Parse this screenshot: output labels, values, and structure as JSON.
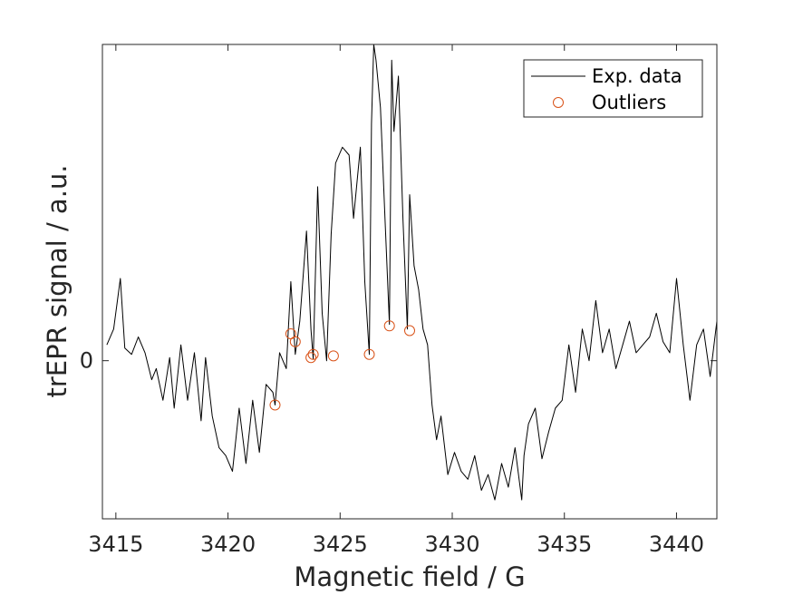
{
  "chart_data": {
    "type": "line",
    "xlabel": "Magnetic field / G",
    "ylabel": "trEPR signal / a.u.",
    "xlim": [
      3414.4,
      3441.8
    ],
    "ylim": [
      -1.0,
      2.0
    ],
    "xticks": [
      3415,
      3420,
      3425,
      3430,
      3435,
      3440
    ],
    "yticks": [
      {
        "value": 0,
        "label": "0"
      }
    ],
    "grid": false,
    "box": true,
    "legend": {
      "position": "top-right",
      "entries": [
        {
          "label": "Exp. data",
          "marker": "line"
        },
        {
          "label": "Outliers",
          "marker": "circle"
        }
      ]
    },
    "colors": {
      "data_line": "#000000",
      "outliers": "#D95319",
      "axes": "#262626"
    },
    "series": [
      {
        "name": "Exp. data",
        "style": "line",
        "x": [
          3414.6,
          3414.9,
          3415.2,
          3415.4,
          3415.7,
          3416.0,
          3416.3,
          3416.6,
          3416.8,
          3417.1,
          3417.4,
          3417.6,
          3417.9,
          3418.2,
          3418.5,
          3418.8,
          3419.0,
          3419.3,
          3419.6,
          3419.9,
          3420.2,
          3420.5,
          3420.8,
          3421.1,
          3421.4,
          3421.7,
          3422.0,
          3422.1,
          3422.3,
          3422.6,
          3422.8,
          3423.0,
          3423.2,
          3423.5,
          3423.7,
          3423.8,
          3424.0,
          3424.2,
          3424.4,
          3424.6,
          3424.8,
          3425.1,
          3425.4,
          3425.6,
          3425.9,
          3426.1,
          3426.3,
          3426.4,
          3426.5,
          3426.6,
          3426.8,
          3427.0,
          3427.2,
          3427.3,
          3427.4,
          3427.6,
          3427.8,
          3428.0,
          3428.1,
          3428.3,
          3428.5,
          3428.7,
          3428.9,
          3429.1,
          3429.3,
          3429.5,
          3429.8,
          3430.1,
          3430.4,
          3430.7,
          3431.0,
          3431.3,
          3431.6,
          3431.9,
          3432.2,
          3432.5,
          3432.8,
          3433.1,
          3433.2,
          3433.4,
          3433.7,
          3434.0,
          3434.3,
          3434.6,
          3434.9,
          3435.2,
          3435.5,
          3435.8,
          3436.1,
          3436.4,
          3436.7,
          3437.0,
          3437.3,
          3437.6,
          3437.9,
          3438.2,
          3438.5,
          3438.8,
          3439.1,
          3439.4,
          3439.7,
          3440.0,
          3440.3,
          3440.6,
          3440.9,
          3441.2,
          3441.5,
          3441.8
        ],
        "y": [
          0.1,
          0.2,
          0.52,
          0.08,
          0.04,
          0.15,
          0.05,
          -0.12,
          -0.05,
          -0.25,
          0.02,
          -0.3,
          0.1,
          -0.25,
          0.05,
          -0.38,
          0.02,
          -0.35,
          -0.55,
          -0.6,
          -0.7,
          -0.3,
          -0.65,
          -0.25,
          -0.58,
          -0.15,
          -0.2,
          -0.28,
          0.05,
          -0.05,
          0.5,
          0.04,
          0.25,
          0.82,
          0.2,
          0.01,
          1.1,
          0.3,
          0.0,
          0.8,
          1.25,
          1.35,
          1.3,
          0.9,
          1.35,
          0.5,
          0.04,
          1.5,
          2.0,
          1.9,
          1.6,
          0.9,
          0.23,
          1.9,
          1.45,
          1.8,
          0.9,
          0.2,
          1.05,
          0.6,
          0.45,
          0.2,
          0.1,
          -0.28,
          -0.5,
          -0.35,
          -0.72,
          -0.58,
          -0.7,
          -0.75,
          -0.6,
          -0.82,
          -0.72,
          -0.88,
          -0.65,
          -0.8,
          -0.55,
          -0.88,
          -0.6,
          -0.4,
          -0.3,
          -0.62,
          -0.45,
          -0.3,
          -0.25,
          0.1,
          -0.2,
          0.2,
          0.0,
          0.38,
          0.05,
          0.2,
          -0.05,
          0.1,
          0.25,
          0.05,
          0.1,
          0.15,
          0.3,
          0.12,
          0.05,
          0.52,
          0.1,
          -0.25,
          0.1,
          0.2,
          -0.1,
          0.25
        ]
      },
      {
        "name": "Outliers",
        "style": "markers",
        "x": [
          3422.1,
          3422.8,
          3423.0,
          3423.7,
          3423.8,
          3424.7,
          3426.3,
          3427.2,
          3428.1
        ],
        "y": [
          -0.28,
          0.17,
          0.12,
          0.02,
          0.04,
          0.03,
          0.04,
          0.22,
          0.19
        ]
      }
    ]
  }
}
